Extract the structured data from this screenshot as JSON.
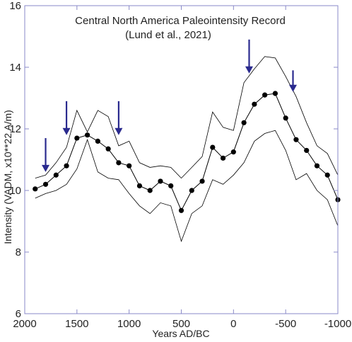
{
  "chart_data": {
    "type": "line",
    "title": "Central North America  Paleointensity Record",
    "subtitle": "(Lund et al., 2021)",
    "xlabel": "Years AD/BC",
    "ylabel": "Intensity (VADM, x10**22 A/m)",
    "xlim": [
      2000,
      -1000
    ],
    "ylim": [
      6,
      16
    ],
    "x_ticks": [
      2000,
      1500,
      1000,
      500,
      0,
      -500,
      -1000
    ],
    "x_tick_labels": [
      "2000",
      "1500",
      "1000",
      "500",
      "0",
      "-500",
      "-1000"
    ],
    "y_ticks": [
      6,
      8,
      10,
      12,
      14,
      16
    ],
    "y_tick_labels": [
      "6",
      "8",
      "10",
      "12",
      "14",
      "16"
    ],
    "grid": false,
    "colors": {
      "frame": "#8a8ac8",
      "series": "#000000",
      "arrows": "#2a2a8e"
    },
    "series": [
      {
        "role": "mean",
        "markers": true,
        "x": [
          1900,
          1800,
          1700,
          1600,
          1500,
          1400,
          1300,
          1200,
          1100,
          1000,
          900,
          800,
          700,
          600,
          500,
          400,
          300,
          200,
          100,
          0,
          -100,
          -200,
          -300,
          -400,
          -500,
          -600,
          -700,
          -800,
          -900,
          -1000
        ],
        "y": [
          10.05,
          10.2,
          10.5,
          10.8,
          11.7,
          11.8,
          11.6,
          11.35,
          10.9,
          10.8,
          10.15,
          10.0,
          10.3,
          10.15,
          9.35,
          10.0,
          10.3,
          11.4,
          11.05,
          11.25,
          12.2,
          12.8,
          13.1,
          13.15,
          12.35,
          11.65,
          11.3,
          10.8,
          10.5,
          9.7
        ]
      },
      {
        "role": "upper-bound",
        "markers": false,
        "x": [
          1900,
          1800,
          1700,
          1600,
          1500,
          1400,
          1300,
          1200,
          1100,
          1000,
          900,
          800,
          700,
          600,
          500,
          400,
          300,
          200,
          100,
          0,
          -100,
          -200,
          -300,
          -400,
          -500,
          -600,
          -700,
          -800,
          -900,
          -1000
        ],
        "y": [
          10.4,
          10.5,
          10.9,
          11.4,
          12.6,
          11.9,
          12.6,
          12.4,
          11.45,
          11.6,
          10.9,
          10.75,
          10.8,
          10.75,
          10.4,
          10.75,
          11.1,
          12.55,
          12.05,
          11.95,
          13.5,
          13.95,
          14.35,
          14.3,
          13.7,
          13.05,
          12.2,
          11.45,
          11.2,
          10.5
        ]
      },
      {
        "role": "lower-bound",
        "markers": false,
        "x": [
          1900,
          1800,
          1700,
          1600,
          1500,
          1400,
          1300,
          1200,
          1100,
          1000,
          900,
          800,
          700,
          600,
          500,
          400,
          300,
          200,
          100,
          0,
          -100,
          -200,
          -300,
          -400,
          -500,
          -600,
          -700,
          -800,
          -900,
          -1000
        ],
        "y": [
          9.75,
          9.9,
          10.0,
          10.2,
          10.7,
          11.65,
          10.6,
          10.4,
          10.35,
          9.9,
          9.5,
          9.25,
          9.6,
          9.5,
          8.35,
          9.25,
          9.5,
          10.35,
          10.2,
          10.5,
          10.9,
          11.6,
          11.85,
          11.95,
          11.3,
          10.35,
          10.55,
          10.0,
          9.7,
          8.85
        ]
      }
    ],
    "arrows": [
      {
        "x": 1800,
        "y_from": 11.7,
        "y_to": 10.6
      },
      {
        "x": 1600,
        "y_from": 12.9,
        "y_to": 11.8
      },
      {
        "x": 1100,
        "y_from": 12.9,
        "y_to": 11.8
      },
      {
        "x": -150,
        "y_from": 14.9,
        "y_to": 13.8
      },
      {
        "x": -570,
        "y_from": 13.9,
        "y_to": 13.2
      }
    ]
  }
}
